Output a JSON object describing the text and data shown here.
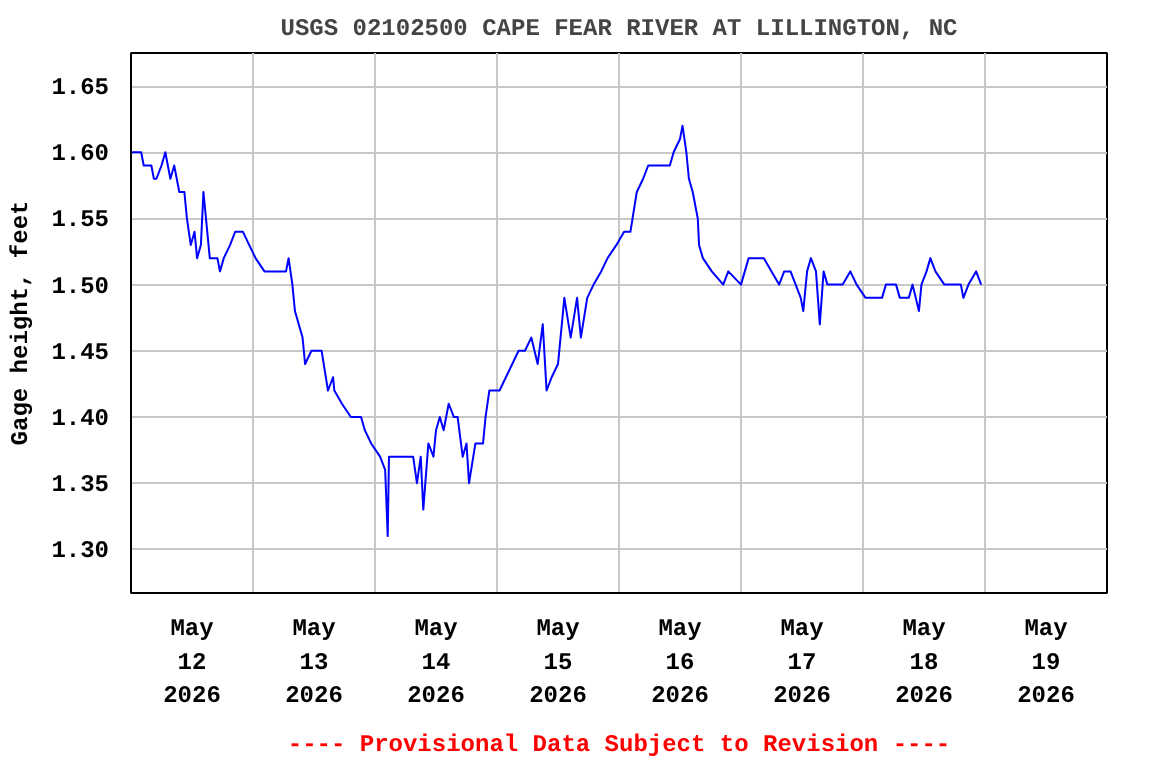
{
  "chart_data": {
    "type": "line",
    "title": "USGS 02102500 CAPE FEAR RIVER AT LILLINGTON, NC",
    "ylabel": "Gage height, feet",
    "annotations": [
      "---- Provisional Data Subject to Revision ----"
    ],
    "x": [
      "2026-05-12T00:00",
      "2026-05-12T02:00",
      "2026-05-12T02:30",
      "2026-05-12T04:00",
      "2026-05-12T04:30",
      "2026-05-12T05:00",
      "2026-05-12T06:00",
      "2026-05-12T06:45",
      "2026-05-12T07:15",
      "2026-05-12T07:45",
      "2026-05-12T08:30",
      "2026-05-12T09:30",
      "2026-05-12T10:30",
      "2026-05-12T11:00",
      "2026-05-12T11:45",
      "2026-05-12T12:30",
      "2026-05-12T13:00",
      "2026-05-12T13:45",
      "2026-05-12T14:15",
      "2026-05-12T15:00",
      "2026-05-12T15:30",
      "2026-05-12T17:00",
      "2026-05-12T17:30",
      "2026-05-12T18:15",
      "2026-05-12T19:30",
      "2026-05-12T20:30",
      "2026-05-12T22:00",
      "2026-05-12T23:15",
      "2026-05-13T00:30",
      "2026-05-13T02:15",
      "2026-05-13T06:30",
      "2026-05-13T07:00",
      "2026-05-13T07:45",
      "2026-05-13T08:15",
      "2026-05-13T09:45",
      "2026-05-13T10:15",
      "2026-05-13T11:30",
      "2026-05-13T13:30",
      "2026-05-13T14:45",
      "2026-05-13T15:45",
      "2026-05-13T16:00",
      "2026-05-13T17:30",
      "2026-05-13T19:15",
      "2026-05-13T21:15",
      "2026-05-13T22:00",
      "2026-05-13T23:15",
      "2026-05-14T01:00",
      "2026-05-14T02:00",
      "2026-05-14T02:30",
      "2026-05-14T02:45",
      "2026-05-14T07:30",
      "2026-05-14T08:15",
      "2026-05-14T09:00",
      "2026-05-14T09:30",
      "2026-05-14T10:30",
      "2026-05-14T11:30",
      "2026-05-14T12:00",
      "2026-05-14T12:45",
      "2026-05-14T13:30",
      "2026-05-14T14:30",
      "2026-05-14T15:30",
      "2026-05-14T16:15",
      "2026-05-14T17:15",
      "2026-05-14T18:00",
      "2026-05-14T18:30",
      "2026-05-14T19:45",
      "2026-05-14T21:15",
      "2026-05-14T21:45",
      "2026-05-14T22:30",
      "2026-05-15T00:30",
      "2026-05-15T01:45",
      "2026-05-15T03:00",
      "2026-05-15T04:15",
      "2026-05-15T05:30",
      "2026-05-15T06:45",
      "2026-05-15T08:00",
      "2026-05-15T09:00",
      "2026-05-15T09:45",
      "2026-05-15T10:45",
      "2026-05-15T12:00",
      "2026-05-15T13:15",
      "2026-05-15T14:30",
      "2026-05-15T15:45",
      "2026-05-15T16:30",
      "2026-05-15T17:45",
      "2026-05-15T19:00",
      "2026-05-15T20:30",
      "2026-05-15T21:45",
      "2026-05-15T23:30",
      "2026-05-16T01:00",
      "2026-05-16T02:15",
      "2026-05-16T03:30",
      "2026-05-16T04:45",
      "2026-05-16T05:45",
      "2026-05-16T10:00",
      "2026-05-16T10:45",
      "2026-05-16T12:00",
      "2026-05-16T12:30",
      "2026-05-16T13:15",
      "2026-05-16T13:45",
      "2026-05-16T14:30",
      "2026-05-16T15:30",
      "2026-05-16T15:45",
      "2026-05-16T16:30",
      "2026-05-16T18:15",
      "2026-05-16T20:30",
      "2026-05-16T21:30",
      "2026-05-17T00:00",
      "2026-05-17T01:30",
      "2026-05-17T04:30",
      "2026-05-17T06:00",
      "2026-05-17T07:30",
      "2026-05-17T08:30",
      "2026-05-17T09:45",
      "2026-05-17T11:45",
      "2026-05-17T12:15",
      "2026-05-17T13:00",
      "2026-05-17T13:45",
      "2026-05-17T14:45",
      "2026-05-17T15:30",
      "2026-05-17T16:15",
      "2026-05-17T17:00",
      "2026-05-17T20:00",
      "2026-05-17T21:30",
      "2026-05-17T22:45",
      "2026-05-18T00:30",
      "2026-05-18T03:45",
      "2026-05-18T04:30",
      "2026-05-18T06:30",
      "2026-05-18T07:15",
      "2026-05-18T09:00",
      "2026-05-18T09:45",
      "2026-05-18T11:00",
      "2026-05-18T11:30",
      "2026-05-18T12:30",
      "2026-05-18T13:15",
      "2026-05-18T14:15",
      "2026-05-18T16:00",
      "2026-05-18T19:15",
      "2026-05-18T19:45",
      "2026-05-18T20:45",
      "2026-05-18T22:15",
      "2026-05-18T23:15"
    ],
    "series": [
      {
        "color": "#0000ff",
        "values": [
          1.6,
          1.6,
          1.59,
          1.59,
          1.58,
          1.58,
          1.59,
          1.6,
          1.59,
          1.58,
          1.59,
          1.57,
          1.57,
          1.55,
          1.53,
          1.54,
          1.52,
          1.53,
          1.57,
          1.54,
          1.52,
          1.52,
          1.51,
          1.52,
          1.53,
          1.54,
          1.54,
          1.53,
          1.52,
          1.51,
          1.51,
          1.52,
          1.5,
          1.48,
          1.46,
          1.44,
          1.45,
          1.45,
          1.42,
          1.43,
          1.42,
          1.41,
          1.4,
          1.4,
          1.39,
          1.38,
          1.37,
          1.36,
          1.31,
          1.37,
          1.37,
          1.35,
          1.37,
          1.33,
          1.38,
          1.37,
          1.39,
          1.4,
          1.39,
          1.41,
          1.4,
          1.4,
          1.37,
          1.38,
          1.35,
          1.38,
          1.38,
          1.4,
          1.42,
          1.42,
          1.43,
          1.44,
          1.45,
          1.45,
          1.46,
          1.44,
          1.47,
          1.42,
          1.43,
          1.44,
          1.49,
          1.46,
          1.49,
          1.46,
          1.49,
          1.5,
          1.51,
          1.52,
          1.53,
          1.54,
          1.54,
          1.57,
          1.58,
          1.59,
          1.59,
          1.6,
          1.61,
          1.62,
          1.6,
          1.58,
          1.57,
          1.55,
          1.53,
          1.52,
          1.51,
          1.5,
          1.51,
          1.5,
          1.52,
          1.52,
          1.51,
          1.5,
          1.51,
          1.51,
          1.49,
          1.48,
          1.51,
          1.52,
          1.51,
          1.47,
          1.51,
          1.5,
          1.5,
          1.51,
          1.5,
          1.49,
          1.49,
          1.5,
          1.5,
          1.49,
          1.49,
          1.5,
          1.48,
          1.5,
          1.51,
          1.52,
          1.51,
          1.5,
          1.5,
          1.49,
          1.5,
          1.51,
          1.5
        ]
      }
    ],
    "xlim": [
      "2026-05-12",
      "2026-05-20"
    ],
    "xticks": [
      {
        "value": "2026-05-12T12:00",
        "label": "May\n12\n2026"
      },
      {
        "value": "2026-05-13",
        "label": null
      },
      {
        "value": "2026-05-13T12:00",
        "label": "May\n13\n2026"
      },
      {
        "value": "2026-05-14",
        "label": null
      },
      {
        "value": "2026-05-14T12:00",
        "label": "May\n14\n2026"
      },
      {
        "value": "2026-05-15",
        "label": null
      },
      {
        "value": "2026-05-15T12:00",
        "label": "May\n15\n2026"
      },
      {
        "value": "2026-05-16",
        "label": null
      },
      {
        "value": "2026-05-16T12:00",
        "label": "May\n16\n2026"
      },
      {
        "value": "2026-05-17",
        "label": null
      },
      {
        "value": "2026-05-17T12:00",
        "label": "May\n17\n2026"
      },
      {
        "value": "2026-05-18",
        "label": null
      },
      {
        "value": "2026-05-18T12:00",
        "label": "May\n18\n2026"
      },
      {
        "value": "2026-05-19",
        "label": null
      },
      {
        "value": "2026-05-19T12:00",
        "label": "May\n19\n2026"
      }
    ],
    "ylim": [
      1.267,
      1.675
    ],
    "yticks": [
      {
        "value": 1.3,
        "label": "1.30"
      },
      {
        "value": 1.35,
        "label": "1.35"
      },
      {
        "value": 1.4,
        "label": "1.40"
      },
      {
        "value": 1.45,
        "label": "1.45"
      },
      {
        "value": 1.5,
        "label": "1.50"
      },
      {
        "value": 1.55,
        "label": "1.55"
      },
      {
        "value": 1.6,
        "label": "1.60"
      },
      {
        "value": 1.65,
        "label": "1.65"
      }
    ],
    "grid": true,
    "line_style": "solid"
  }
}
